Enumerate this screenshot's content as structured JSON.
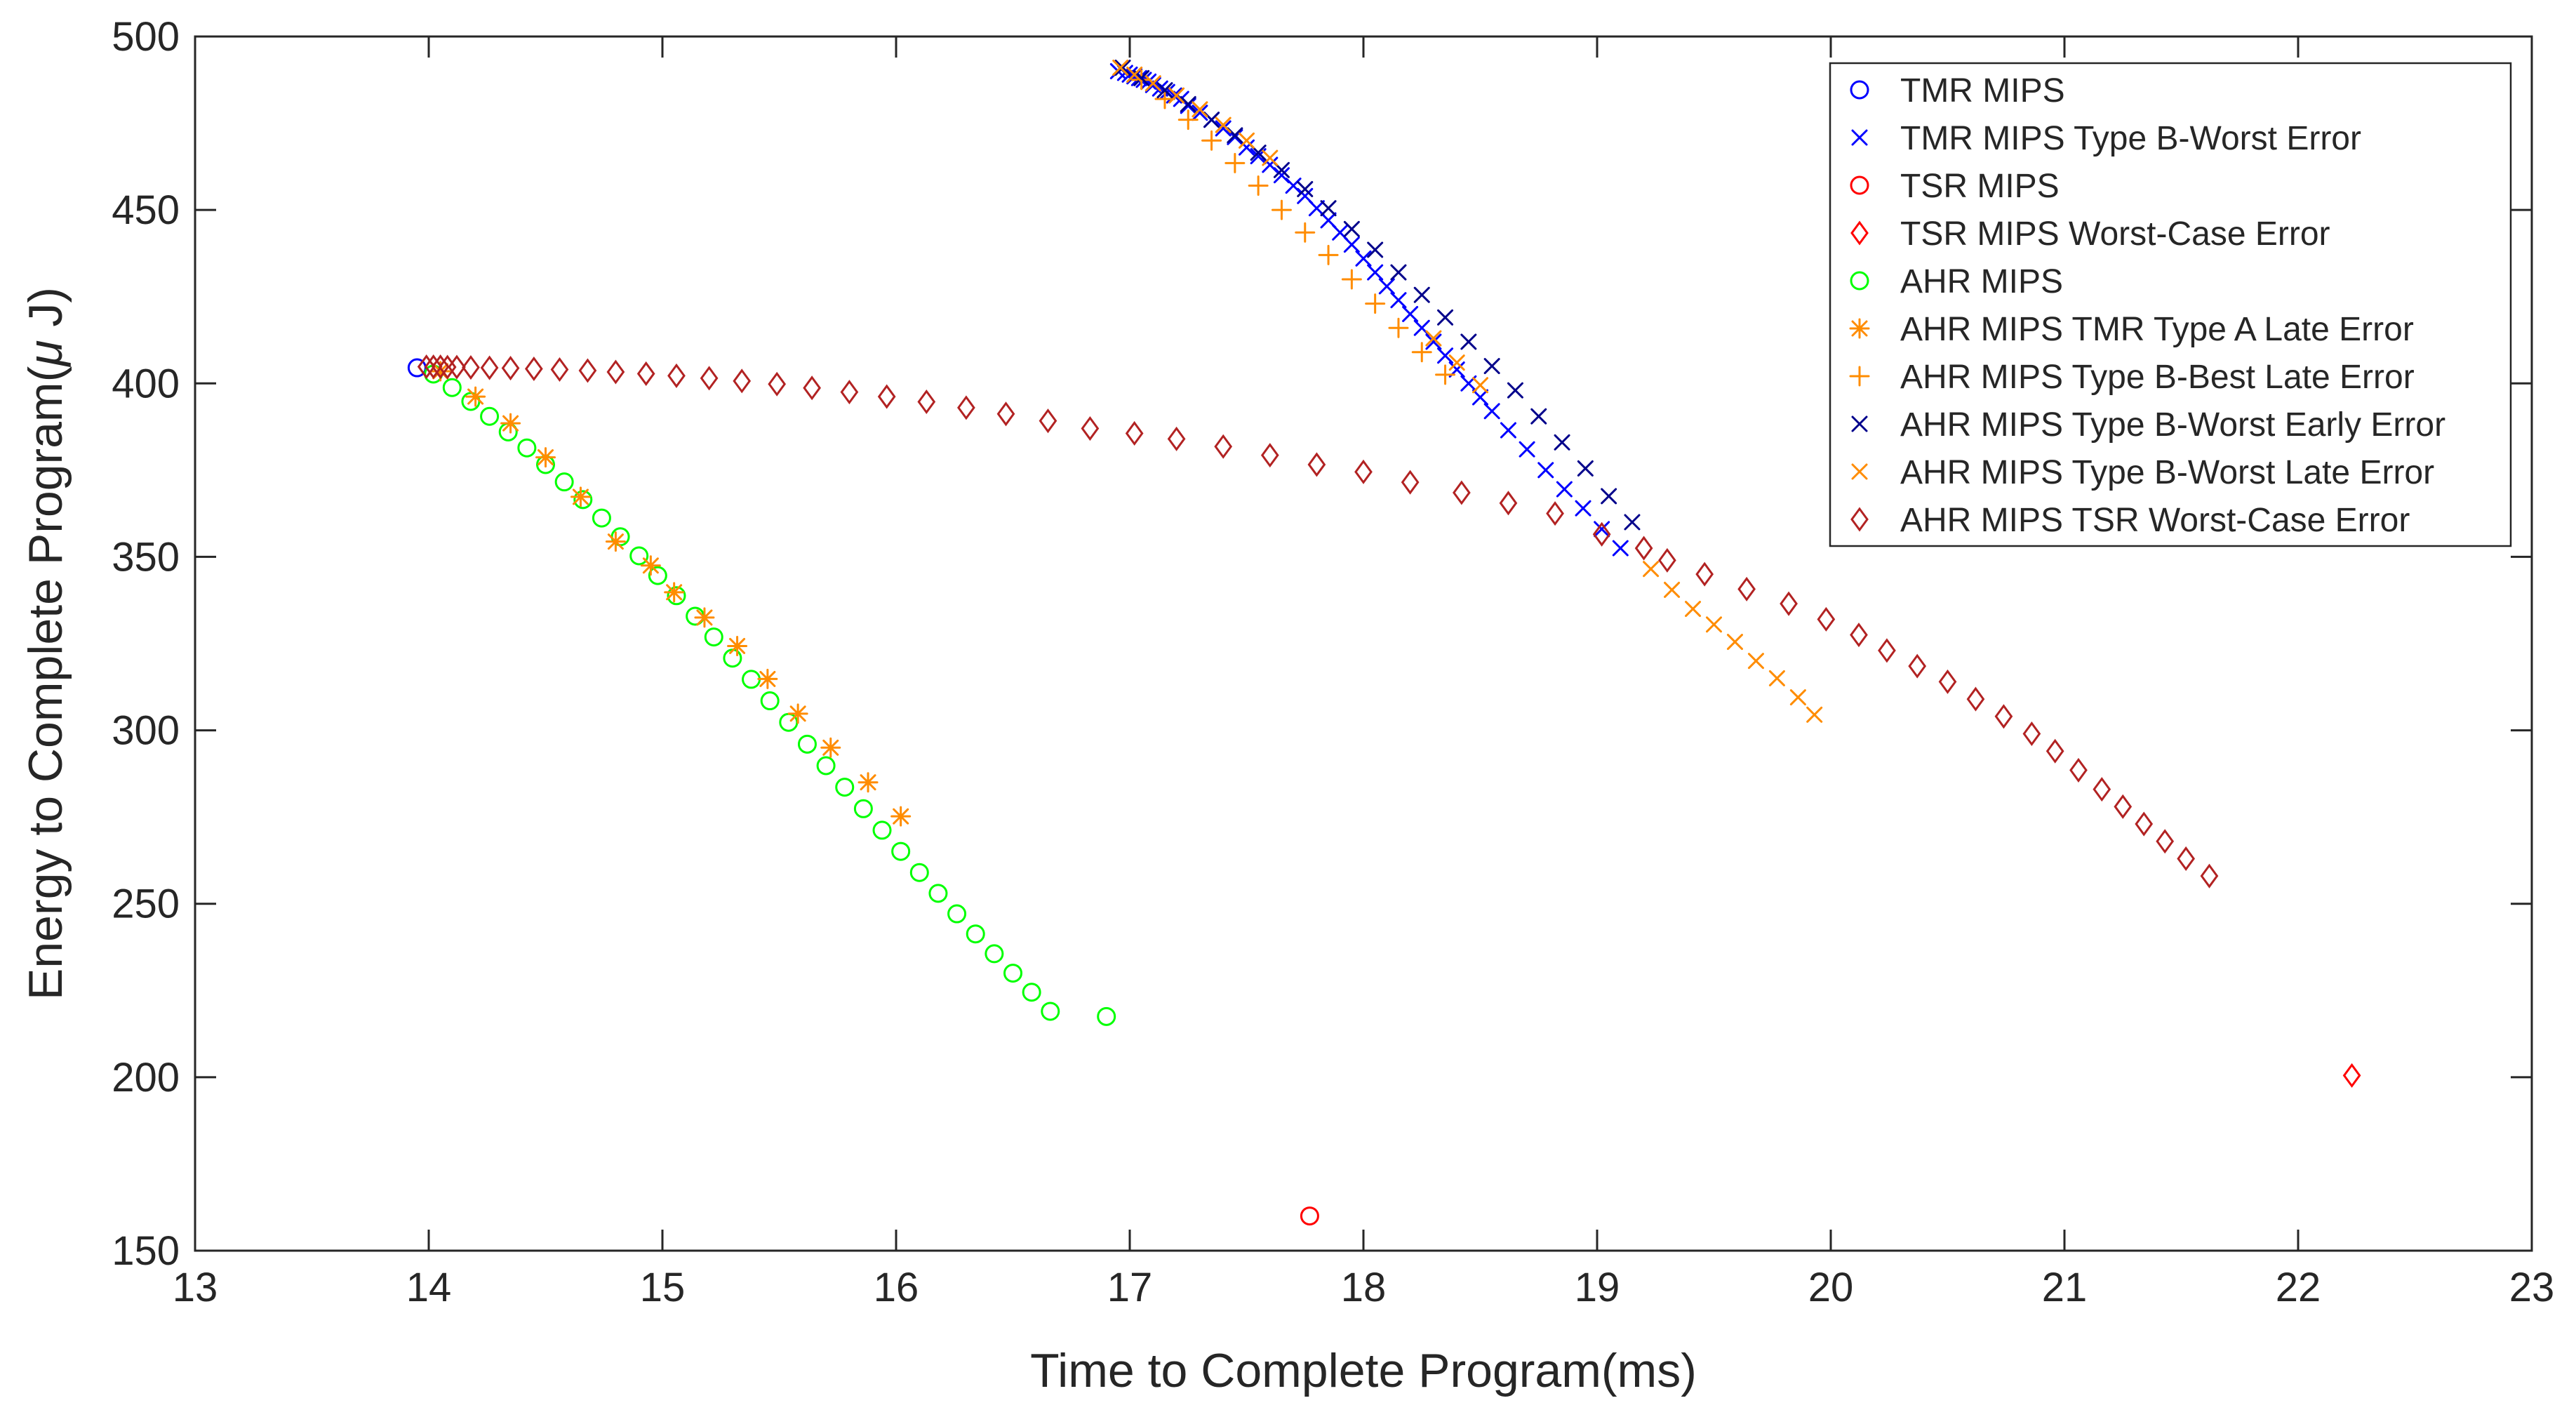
{
  "chart_data": {
    "type": "scatter",
    "title": "",
    "xlabel": "Time to Complete Program(ms)",
    "ylabel_main": "Energy to Complete Program(",
    "ylabel_mu": "μ",
    "ylabel_end": " J)",
    "xlim": [
      13,
      23
    ],
    "ylim": [
      150,
      500
    ],
    "xticks": [
      13,
      14,
      15,
      16,
      17,
      18,
      19,
      20,
      21,
      22,
      23
    ],
    "yticks": [
      150,
      200,
      250,
      300,
      350,
      400,
      450,
      500
    ],
    "grid": false,
    "legend_position": "top-right",
    "series": [
      {
        "name": "TMR MIPS",
        "marker": "circle",
        "color": "#0000ff",
        "points": [
          [
            13.95,
            404.5
          ]
        ]
      },
      {
        "name": "TMR MIPS Type B-Worst Error",
        "marker": "x",
        "color": "#0000ff",
        "points": [
          [
            16.95,
            490
          ],
          [
            16.98,
            489.5
          ],
          [
            17.0,
            489
          ],
          [
            17.02,
            488.5
          ],
          [
            17.04,
            488
          ],
          [
            17.06,
            487.5
          ],
          [
            17.08,
            487
          ],
          [
            17.1,
            486
          ],
          [
            17.13,
            485
          ],
          [
            17.16,
            484
          ],
          [
            17.19,
            483
          ],
          [
            17.22,
            482
          ],
          [
            17.25,
            480
          ],
          [
            17.3,
            478
          ],
          [
            17.35,
            476
          ],
          [
            17.4,
            473.5
          ],
          [
            17.45,
            471
          ],
          [
            17.5,
            468
          ],
          [
            17.55,
            465.5
          ],
          [
            17.6,
            463
          ],
          [
            17.65,
            460
          ],
          [
            17.7,
            457
          ],
          [
            17.75,
            454
          ],
          [
            17.8,
            450.5
          ],
          [
            17.85,
            447
          ],
          [
            17.9,
            443.5
          ],
          [
            17.95,
            440
          ],
          [
            18.0,
            436
          ],
          [
            18.05,
            432
          ],
          [
            18.1,
            428
          ],
          [
            18.15,
            424
          ],
          [
            18.2,
            420
          ],
          [
            18.25,
            416
          ],
          [
            18.3,
            412
          ],
          [
            18.35,
            408
          ],
          [
            18.4,
            404
          ],
          [
            18.45,
            400
          ],
          [
            18.5,
            396
          ],
          [
            18.55,
            392
          ],
          [
            18.62,
            386.5
          ],
          [
            18.7,
            381
          ],
          [
            18.78,
            375
          ],
          [
            18.86,
            369.5
          ],
          [
            18.94,
            364
          ],
          [
            19.02,
            358
          ],
          [
            19.1,
            352.5
          ]
        ]
      },
      {
        "name": "TSR MIPS",
        "marker": "circle",
        "color": "#ff0000",
        "points": [
          [
            17.77,
            160
          ]
        ]
      },
      {
        "name": "TSR MIPS Worst-Case Error",
        "marker": "diamond",
        "color": "#ff0000",
        "points": [
          [
            22.23,
            200.5
          ]
        ]
      },
      {
        "name": "AHR MIPS",
        "marker": "circle",
        "color": "#00ff00",
        "points": [
          [
            14.02,
            402.7
          ],
          [
            14.1,
            398.8
          ],
          [
            14.18,
            394.8
          ],
          [
            14.26,
            390.5
          ],
          [
            14.34,
            386.0
          ],
          [
            14.42,
            381.4
          ],
          [
            14.5,
            376.6
          ],
          [
            14.58,
            371.6
          ],
          [
            14.66,
            366.5
          ],
          [
            14.74,
            361.2
          ],
          [
            14.82,
            355.8
          ],
          [
            14.9,
            350.3
          ],
          [
            14.98,
            344.6
          ],
          [
            15.06,
            338.8
          ],
          [
            15.14,
            332.9
          ],
          [
            15.22,
            326.9
          ],
          [
            15.3,
            320.8
          ],
          [
            15.38,
            314.7
          ],
          [
            15.46,
            308.5
          ],
          [
            15.54,
            302.3
          ],
          [
            15.62,
            296.0
          ],
          [
            15.7,
            289.8
          ],
          [
            15.78,
            283.6
          ],
          [
            15.86,
            277.4
          ],
          [
            15.94,
            271.2
          ],
          [
            16.02,
            265.1
          ],
          [
            16.1,
            259.0
          ],
          [
            16.18,
            253.0
          ],
          [
            16.26,
            247.1
          ],
          [
            16.34,
            241.3
          ],
          [
            16.42,
            235.6
          ],
          [
            16.5,
            230.0
          ],
          [
            16.58,
            224.5
          ],
          [
            16.66,
            219.0
          ],
          [
            16.9,
            217.5
          ]
        ]
      },
      {
        "name": "AHR MIPS TMR Type A Late Error",
        "marker": "asterisk",
        "color": "#ff8c00",
        "points": [
          [
            14.05,
            403.5
          ],
          [
            14.2,
            396.2
          ],
          [
            14.35,
            388.5
          ],
          [
            14.5,
            378.7
          ],
          [
            14.65,
            367.3
          ],
          [
            14.8,
            354.4
          ],
          [
            14.95,
            347.5
          ],
          [
            15.05,
            339.8
          ],
          [
            15.18,
            332.5
          ],
          [
            15.32,
            324.3
          ],
          [
            15.45,
            314.8
          ],
          [
            15.58,
            304.8
          ],
          [
            15.72,
            295.0
          ],
          [
            15.88,
            285.0
          ],
          [
            16.02,
            275.2
          ]
        ]
      },
      {
        "name": "AHR MIPS Type B-Best Late Error",
        "marker": "plus",
        "color": "#ff8c00",
        "points": [
          [
            17.05,
            487.5
          ],
          [
            17.15,
            482
          ],
          [
            17.25,
            476
          ],
          [
            17.35,
            470
          ],
          [
            17.45,
            463.5
          ],
          [
            17.55,
            457
          ],
          [
            17.65,
            450
          ],
          [
            17.75,
            443.5
          ],
          [
            17.85,
            437
          ],
          [
            17.95,
            430
          ],
          [
            18.05,
            423
          ],
          [
            18.15,
            416
          ],
          [
            18.25,
            409
          ],
          [
            18.35,
            402.5
          ]
        ]
      },
      {
        "name": "AHR MIPS Type B-Worst Early Error",
        "marker": "x",
        "color": "#00008b",
        "points": [
          [
            16.97,
            491
          ],
          [
            17.05,
            488
          ],
          [
            17.15,
            484.5
          ],
          [
            17.25,
            480.5
          ],
          [
            17.35,
            476
          ],
          [
            17.45,
            471.5
          ],
          [
            17.55,
            466.5
          ],
          [
            17.65,
            461.5
          ],
          [
            17.75,
            456
          ],
          [
            17.85,
            450.5
          ],
          [
            17.95,
            444.5
          ],
          [
            18.05,
            438.5
          ],
          [
            18.15,
            432
          ],
          [
            18.25,
            425.5
          ],
          [
            18.35,
            419
          ],
          [
            18.45,
            412
          ],
          [
            18.55,
            405
          ],
          [
            18.65,
            398
          ],
          [
            18.75,
            390.5
          ],
          [
            18.85,
            383
          ],
          [
            18.95,
            375.5
          ],
          [
            19.05,
            367.5
          ],
          [
            19.15,
            360
          ]
        ]
      },
      {
        "name": "AHR MIPS Type B-Worst Late Error",
        "marker": "x",
        "color": "#ff8c00",
        "points": [
          [
            16.96,
            491
          ],
          [
            17.02,
            489
          ],
          [
            17.1,
            486.5
          ],
          [
            17.2,
            483
          ],
          [
            17.3,
            479
          ],
          [
            17.4,
            474.5
          ],
          [
            17.5,
            470
          ],
          [
            17.6,
            465
          ],
          [
            18.3,
            413
          ],
          [
            18.4,
            406
          ],
          [
            18.5,
            399.5
          ],
          [
            19.23,
            346.5
          ],
          [
            19.32,
            340.5
          ],
          [
            19.41,
            335
          ],
          [
            19.5,
            330.5
          ],
          [
            19.59,
            325.5
          ],
          [
            19.68,
            320
          ],
          [
            19.77,
            315
          ],
          [
            19.86,
            309.5
          ],
          [
            19.93,
            304.5
          ]
        ]
      },
      {
        "name": "AHR MIPS TSR Worst-Case Error",
        "marker": "diamond",
        "color": "#b22222",
        "points": [
          [
            13.99,
            404.8
          ],
          [
            14.02,
            404.8
          ],
          [
            14.05,
            404.8
          ],
          [
            14.08,
            404.7
          ],
          [
            14.12,
            404.7
          ],
          [
            14.18,
            404.6
          ],
          [
            14.26,
            404.5
          ],
          [
            14.35,
            404.4
          ],
          [
            14.45,
            404.2
          ],
          [
            14.56,
            404.0
          ],
          [
            14.68,
            403.7
          ],
          [
            14.8,
            403.3
          ],
          [
            14.93,
            402.8
          ],
          [
            15.06,
            402.2
          ],
          [
            15.2,
            401.5
          ],
          [
            15.34,
            400.7
          ],
          [
            15.49,
            399.8
          ],
          [
            15.64,
            398.7
          ],
          [
            15.8,
            397.5
          ],
          [
            15.96,
            396.2
          ],
          [
            16.13,
            394.7
          ],
          [
            16.3,
            393.0
          ],
          [
            16.47,
            391.2
          ],
          [
            16.65,
            389.2
          ],
          [
            16.83,
            387.0
          ],
          [
            17.02,
            385.6
          ],
          [
            17.2,
            384.0
          ],
          [
            17.4,
            381.8
          ],
          [
            17.6,
            379.3
          ],
          [
            17.8,
            376.6
          ],
          [
            18.0,
            374.5
          ],
          [
            18.2,
            371.5
          ],
          [
            18.42,
            368.5
          ],
          [
            18.62,
            365.5
          ],
          [
            18.82,
            362.5
          ],
          [
            19.02,
            356.5
          ],
          [
            19.2,
            352.5
          ],
          [
            19.3,
            349
          ],
          [
            19.46,
            345
          ],
          [
            19.64,
            340.7
          ],
          [
            19.82,
            336.5
          ],
          [
            19.98,
            332
          ],
          [
            20.12,
            327.5
          ],
          [
            20.24,
            323
          ],
          [
            20.37,
            318.5
          ],
          [
            20.5,
            314
          ],
          [
            20.62,
            309
          ],
          [
            20.74,
            304
          ],
          [
            20.86,
            299
          ],
          [
            20.96,
            294
          ],
          [
            21.06,
            288.5
          ],
          [
            21.16,
            283
          ],
          [
            21.25,
            278
          ],
          [
            21.34,
            273
          ],
          [
            21.43,
            268
          ],
          [
            21.52,
            263
          ],
          [
            21.62,
            258
          ]
        ]
      }
    ]
  }
}
